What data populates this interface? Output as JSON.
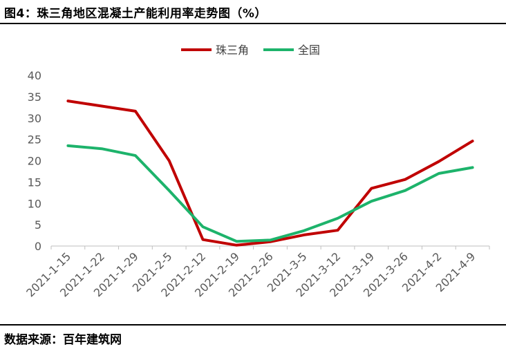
{
  "header": {
    "title": "图4：珠三角地区混凝土产能利用率走势图（%）"
  },
  "footer": {
    "source": "数据来源：百年建筑网"
  },
  "chart_data": {
    "type": "line",
    "title": "图4：珠三角地区混凝土产能利用率走势图（%）",
    "xlabel": "",
    "ylabel": "",
    "ylim": [
      0,
      40
    ],
    "yticks": [
      0,
      5,
      10,
      15,
      20,
      25,
      30,
      35,
      40
    ],
    "grid": false,
    "legend": "top-center",
    "categories": [
      "2021-1-15",
      "2021-1-22",
      "2021-1-29",
      "2021-2-5",
      "2021-2-12",
      "2021-2-19",
      "2021-2-26",
      "2021-3-5",
      "2021-3-12",
      "2021-3-19",
      "2021-3-26",
      "2021-4-2",
      "2021-4-9"
    ],
    "series": [
      {
        "name": "珠三角",
        "color": "#C00000",
        "values": [
          34.0,
          32.8,
          31.6,
          20.0,
          1.5,
          0.2,
          1.0,
          2.6,
          3.7,
          13.5,
          15.6,
          19.8,
          24.6
        ]
      },
      {
        "name": "全国",
        "color": "#1DB36B",
        "values": [
          23.5,
          22.8,
          21.2,
          13.0,
          4.5,
          1.1,
          1.4,
          3.6,
          6.5,
          10.5,
          13.0,
          17.0,
          18.4
        ]
      }
    ]
  }
}
